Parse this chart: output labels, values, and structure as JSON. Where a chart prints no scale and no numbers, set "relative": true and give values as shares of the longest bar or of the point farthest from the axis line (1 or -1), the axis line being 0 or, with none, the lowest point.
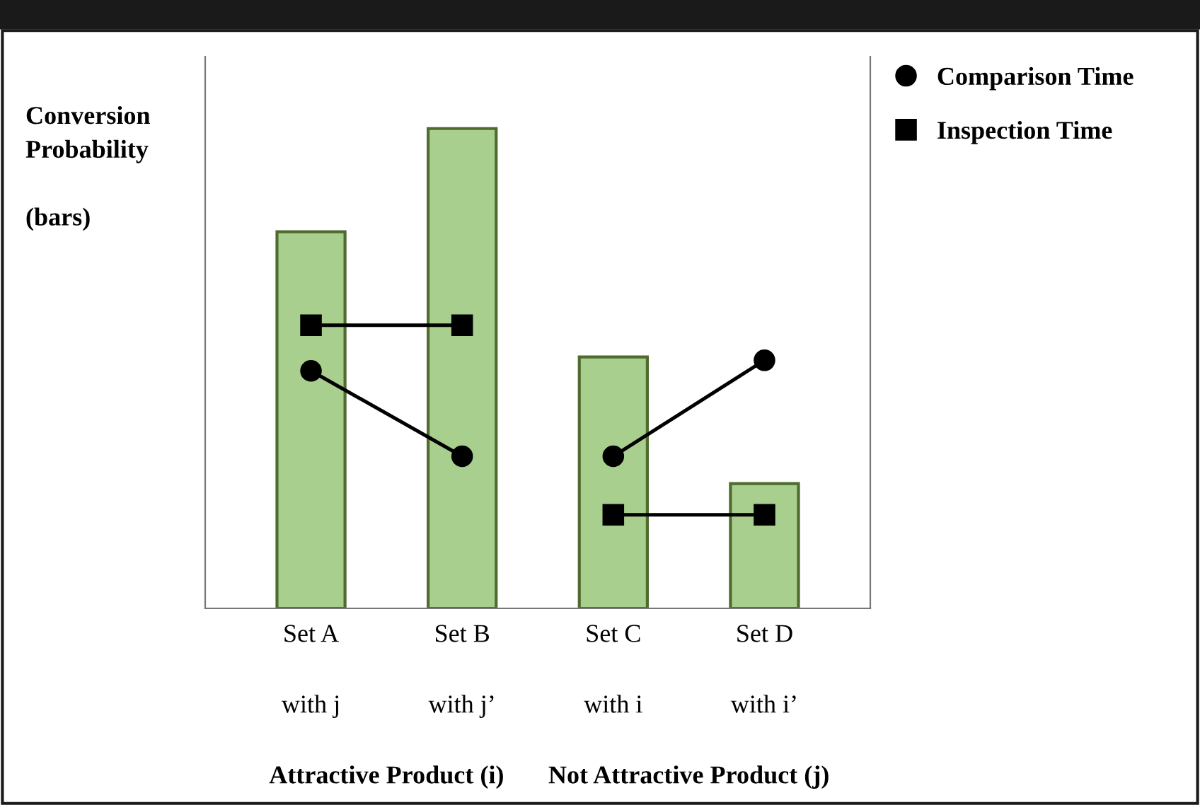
{
  "chart_data": {
    "type": "bar",
    "relative": true,
    "ylabel": "Conversion\nProbability\n\n(bars)",
    "categories": [
      "Set A",
      "Set B",
      "Set C",
      "Set D"
    ],
    "series": [
      {
        "type": "bar",
        "color": "#a9cf8e",
        "values": [
          0.785,
          1,
          0.524,
          0.26
        ]
      },
      {
        "type": "line",
        "name": "Comparison Time",
        "color": "#000000",
        "marker": "circle",
        "values": [
          0.495,
          0.317,
          null,
          null
        ]
      },
      {
        "type": "line",
        "color": "#000000",
        "marker": "circle",
        "values": [
          null,
          null,
          0.317,
          0.517
        ]
      },
      {
        "type": "line",
        "name": "Inspection Time",
        "color": "#000000",
        "marker": "square",
        "values": [
          0.59,
          0.59,
          null,
          null
        ]
      },
      {
        "type": "line",
        "color": "#000000",
        "marker": "square",
        "values": [
          null,
          null,
          0.195,
          0.195
        ]
      }
    ],
    "annotations": [
      "with j",
      "with j’",
      "with i",
      "with i’",
      "Attractive Product (i)",
      "Not Attractive Product (j)"
    ],
    "legend": "top right",
    "grid": false
  }
}
